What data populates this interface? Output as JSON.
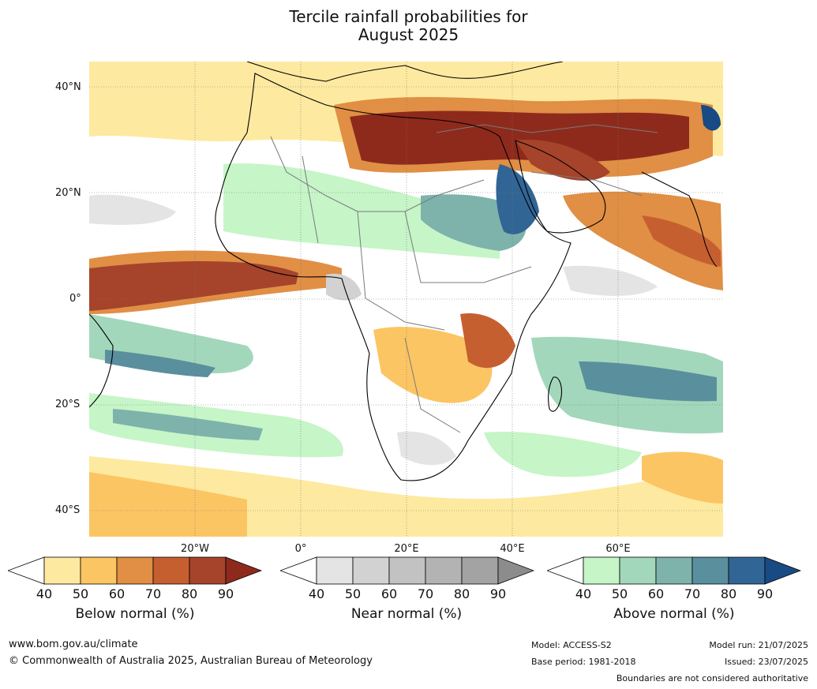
{
  "title_line1": "Tercile rainfall probabilities for",
  "title_line2": "August 2025",
  "lat_labels": [
    "40°N",
    "20°N",
    "0°",
    "20°S",
    "40°S"
  ],
  "lon_labels": [
    "20°W",
    "0°",
    "20°E",
    "40°E",
    "60°E"
  ],
  "legends": [
    {
      "label": "Below normal (%)",
      "ticks": [
        "40",
        "50",
        "60",
        "70",
        "80",
        "90"
      ],
      "colors": [
        "#fdeaa0",
        "#fcc563",
        "#e08f45",
        "#c65f30",
        "#a6432b",
        "#8e2a1c"
      ]
    },
    {
      "label": "Near normal (%)",
      "ticks": [
        "40",
        "50",
        "60",
        "70",
        "80",
        "90"
      ],
      "colors": [
        "#e4e4e4",
        "#d2d2d2",
        "#c2c2c2",
        "#b3b3b3",
        "#a3a3a3",
        "#8c8c8c"
      ]
    },
    {
      "label": "Above normal (%)",
      "ticks": [
        "40",
        "50",
        "60",
        "70",
        "80",
        "90"
      ],
      "colors": [
        "#c6f5c8",
        "#a3d7bb",
        "#7db3ab",
        "#5a8f9e",
        "#316595",
        "#184a84"
      ]
    }
  ],
  "footer": {
    "url": "www.bom.gov.au/climate",
    "copyright": "© Commonwealth of Australia 2025, Australian Bureau of Meteorology",
    "model": "Model: ACCESS-S2",
    "base_period": "Base period: 1981-2018",
    "model_run": "Model run: 21/07/2025",
    "issued": "Issued: 23/07/2025",
    "disclaimer": "Boundaries are not considered authoritative"
  },
  "map_colors": {
    "background": "#ffffff",
    "coast": "#000000",
    "borders": "#7a7a7a"
  }
}
